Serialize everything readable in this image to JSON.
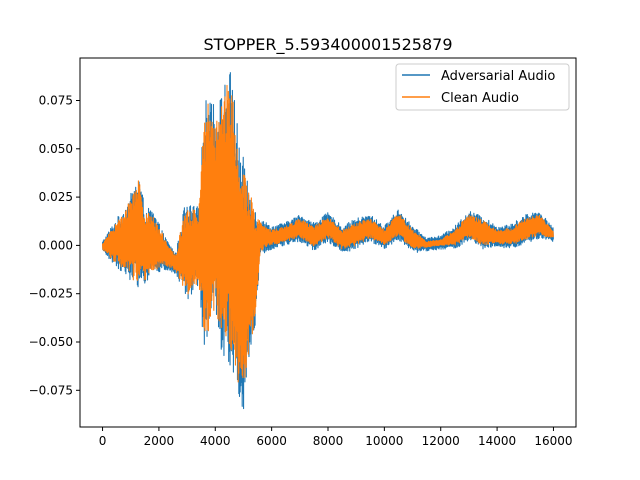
{
  "chart_data": {
    "type": "line",
    "title": "STOPPER_5.593400001525879",
    "xlabel": "",
    "ylabel": "",
    "xlim": [
      -800,
      16800
    ],
    "ylim": [
      -0.094,
      0.097
    ],
    "x_ticks": [
      0,
      2000,
      4000,
      6000,
      8000,
      10000,
      12000,
      14000,
      16000
    ],
    "x_tick_labels": [
      "0",
      "2000",
      "4000",
      "6000",
      "8000",
      "10000",
      "12000",
      "14000",
      "16000"
    ],
    "y_ticks": [
      -0.075,
      -0.05,
      -0.025,
      0.0,
      0.025,
      0.05,
      0.075
    ],
    "y_tick_labels": [
      "−0.075",
      "−0.050",
      "−0.025",
      "0.000",
      "0.025",
      "0.050",
      "0.075"
    ],
    "grid": false,
    "legend_position": "upper right",
    "series": [
      {
        "name": "Adversarial Audio",
        "color": "#1f77b4",
        "envelope": {
          "x": [
            0,
            400,
            800,
            1100,
            1300,
            1500,
            1800,
            2200,
            2600,
            2900,
            3100,
            3400,
            3600,
            3800,
            4000,
            4200,
            4400,
            4600,
            4800,
            5000,
            5200,
            5400,
            5600,
            6000,
            6500,
            7000,
            7500,
            8000,
            8500,
            9000,
            9500,
            10000,
            10500,
            11000,
            11500,
            12000,
            12500,
            13000,
            13500,
            14000,
            14500,
            15000,
            15500,
            16000
          ],
          "upper": [
            0.002,
            0.012,
            0.02,
            0.03,
            0.037,
            0.02,
            0.018,
            0.005,
            -0.004,
            0.02,
            0.021,
            0.02,
            0.07,
            0.085,
            0.07,
            0.078,
            0.09,
            0.091,
            0.06,
            0.045,
            0.035,
            0.02,
            0.014,
            0.01,
            0.012,
            0.016,
            0.012,
            0.017,
            0.01,
            0.014,
            0.016,
            0.01,
            0.019,
            0.01,
            0.004,
            0.005,
            0.01,
            0.018,
            0.015,
            0.01,
            0.011,
            0.016,
            0.018,
            0.009
          ],
          "lower": [
            -0.003,
            -0.01,
            -0.015,
            -0.02,
            -0.022,
            -0.02,
            -0.015,
            -0.013,
            -0.015,
            -0.025,
            -0.03,
            -0.02,
            -0.052,
            -0.045,
            -0.038,
            -0.055,
            -0.06,
            -0.065,
            -0.08,
            -0.085,
            -0.06,
            -0.045,
            -0.005,
            -0.002,
            0.0,
            0.002,
            -0.003,
            0.002,
            -0.004,
            -0.002,
            0.002,
            -0.002,
            0.003,
            -0.004,
            -0.003,
            -0.002,
            -0.002,
            0.002,
            -0.002,
            -0.001,
            -0.002,
            0.001,
            0.003,
            0.002
          ]
        }
      },
      {
        "name": "Clean Audio",
        "color": "#ff7f0e",
        "envelope": {
          "x": [
            0,
            400,
            800,
            1100,
            1300,
            1500,
            1800,
            2200,
            2600,
            2900,
            3100,
            3400,
            3600,
            3800,
            4000,
            4200,
            4400,
            4600,
            4800,
            5000,
            5200,
            5400,
            5600,
            6000,
            6500,
            7000,
            7500,
            8000,
            8500,
            9000,
            9500,
            10000,
            10500,
            11000,
            11500,
            12000,
            12500,
            13000,
            13500,
            14000,
            14500,
            15000,
            15500,
            16000
          ],
          "upper": [
            0.001,
            0.01,
            0.018,
            0.028,
            0.037,
            0.018,
            0.015,
            0.004,
            -0.005,
            0.018,
            0.019,
            0.018,
            0.066,
            0.078,
            0.066,
            0.072,
            0.086,
            0.087,
            0.056,
            0.042,
            0.032,
            0.018,
            0.012,
            0.008,
            0.01,
            0.014,
            0.01,
            0.015,
            0.008,
            0.012,
            0.014,
            0.008,
            0.017,
            0.008,
            0.002,
            0.003,
            0.008,
            0.016,
            0.013,
            0.008,
            0.009,
            0.014,
            0.016,
            0.007
          ],
          "lower": [
            -0.002,
            -0.008,
            -0.013,
            -0.018,
            -0.02,
            -0.018,
            -0.013,
            -0.011,
            -0.013,
            -0.023,
            -0.028,
            -0.018,
            -0.05,
            -0.043,
            -0.035,
            -0.05,
            -0.055,
            -0.06,
            -0.074,
            -0.074,
            -0.056,
            -0.042,
            -0.003,
            0.0,
            0.002,
            0.004,
            -0.001,
            0.004,
            -0.002,
            0.0,
            0.004,
            0.0,
            0.005,
            -0.002,
            -0.001,
            0.0,
            0.0,
            0.004,
            0.0,
            0.001,
            0.0,
            0.003,
            0.005,
            0.004
          ]
        }
      }
    ]
  }
}
